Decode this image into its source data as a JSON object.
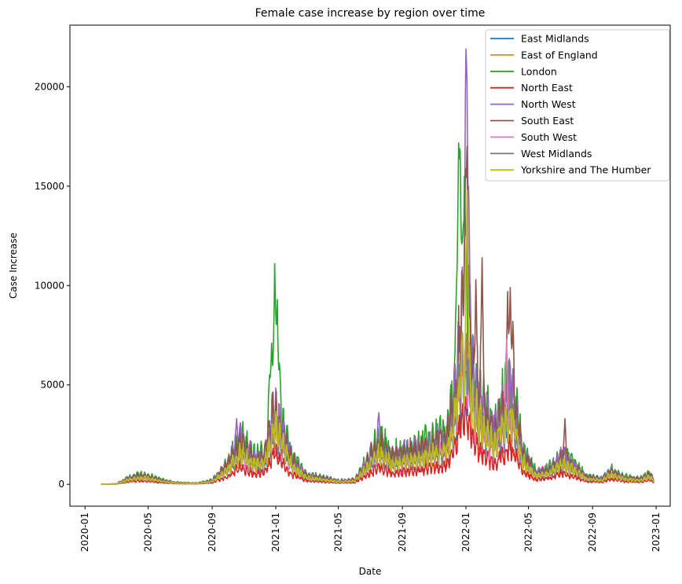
{
  "chart_data": {
    "type": "line",
    "title": "Female case increase by region over time",
    "xlabel": "Date",
    "ylabel": "Case Increase",
    "xlim": [
      "2019-12-03",
      "2023-01-28"
    ],
    "ylim": [
      -1100,
      23100
    ],
    "x_ticks": [
      {
        "date": "2020-01-01",
        "label": "2020-01"
      },
      {
        "date": "2020-05-01",
        "label": "2020-05"
      },
      {
        "date": "2020-09-01",
        "label": "2020-09"
      },
      {
        "date": "2021-01-01",
        "label": "2021-01"
      },
      {
        "date": "2021-05-01",
        "label": "2021-05"
      },
      {
        "date": "2021-09-01",
        "label": "2021-09"
      },
      {
        "date": "2022-01-01",
        "label": "2022-01"
      },
      {
        "date": "2022-05-01",
        "label": "2022-05"
      },
      {
        "date": "2022-09-01",
        "label": "2022-09"
      },
      {
        "date": "2023-01-01",
        "label": "2023-01"
      }
    ],
    "y_ticks": [
      {
        "value": 0,
        "label": "0"
      },
      {
        "value": 5000,
        "label": "5000"
      },
      {
        "value": 10000,
        "label": "10000"
      },
      {
        "value": 15000,
        "label": "15000"
      },
      {
        "value": 20000,
        "label": "20000"
      }
    ],
    "grid": false,
    "legend_position": "top-right",
    "series": [
      {
        "name": "East Midlands",
        "color": "#1f77b4",
        "scale": 0.55,
        "seed": 11
      },
      {
        "name": "East of England",
        "color": "#ff7f0e",
        "scale": 0.6,
        "seed": 23
      },
      {
        "name": "London",
        "color": "#2ca02c",
        "scale": 1.0,
        "seed": 37,
        "overrides": [
          [
            "2020-12-20",
            5500
          ],
          [
            "2020-12-24",
            7100
          ],
          [
            "2020-12-30",
            11100
          ],
          [
            "2021-01-04",
            9300
          ],
          [
            "2021-01-08",
            6100
          ],
          [
            "2021-12-14",
            10200
          ],
          [
            "2021-12-18",
            16800
          ],
          [
            "2021-12-21",
            18300
          ],
          [
            "2021-12-24",
            12100
          ],
          [
            "2021-12-29",
            15500
          ]
        ]
      },
      {
        "name": "North East",
        "color": "#d62728",
        "scale": 0.35,
        "seed": 41
      },
      {
        "name": "North West",
        "color": "#9467bd",
        "scale": 0.9,
        "seed": 53,
        "overrides": [
          [
            "2020-10-18",
            3300
          ],
          [
            "2020-10-25",
            3100
          ],
          [
            "2021-07-18",
            3600
          ],
          [
            "2021-12-27",
            10500
          ],
          [
            "2022-01-01",
            21800
          ],
          [
            "2022-01-03",
            22000
          ],
          [
            "2022-01-06",
            15000
          ]
        ]
      },
      {
        "name": "South East",
        "color": "#8c564b",
        "scale": 0.85,
        "seed": 67,
        "overrides": [
          [
            "2021-12-31",
            15500
          ],
          [
            "2022-01-03",
            17000
          ],
          [
            "2022-01-20",
            10300
          ],
          [
            "2022-02-01",
            11400
          ],
          [
            "2022-03-22",
            9700
          ],
          [
            "2022-03-27",
            9900
          ],
          [
            "2022-04-01",
            8200
          ],
          [
            "2022-07-10",
            3300
          ]
        ]
      },
      {
        "name": "South West",
        "color": "#e377c2",
        "scale": 0.6,
        "seed": 71,
        "overrides": [
          [
            "2022-03-20",
            7300
          ]
        ]
      },
      {
        "name": "West Midlands",
        "color": "#7f7f7f",
        "scale": 0.65,
        "seed": 83
      },
      {
        "name": "Yorkshire and The Humber",
        "color": "#bcbd22",
        "scale": 0.65,
        "seed": 97,
        "overrides": [
          [
            "2022-01-03",
            14800
          ]
        ]
      }
    ],
    "envelope": [
      [
        "2020-02-01",
        0
      ],
      [
        "2020-03-01",
        30
      ],
      [
        "2020-03-20",
        320
      ],
      [
        "2020-04-05",
        480
      ],
      [
        "2020-04-25",
        520
      ],
      [
        "2020-05-20",
        300
      ],
      [
        "2020-06-20",
        110
      ],
      [
        "2020-08-01",
        70
      ],
      [
        "2020-09-01",
        220
      ],
      [
        "2020-10-01",
        1200
      ],
      [
        "2020-10-25",
        2600
      ],
      [
        "2020-11-20",
        1600
      ],
      [
        "2020-12-10",
        1700
      ],
      [
        "2020-12-30",
        4800
      ],
      [
        "2021-01-10",
        3600
      ],
      [
        "2021-02-01",
        1500
      ],
      [
        "2021-03-01",
        550
      ],
      [
        "2021-04-01",
        380
      ],
      [
        "2021-05-01",
        210
      ],
      [
        "2021-06-01",
        260
      ],
      [
        "2021-06-20",
        1100
      ],
      [
        "2021-07-18",
        2600
      ],
      [
        "2021-08-10",
        1700
      ],
      [
        "2021-09-01",
        1850
      ],
      [
        "2021-10-01",
        2100
      ],
      [
        "2021-11-01",
        2500
      ],
      [
        "2021-11-25",
        2900
      ],
      [
        "2021-12-10",
        5200
      ],
      [
        "2021-12-22",
        9500
      ],
      [
        "2022-01-04",
        10500
      ],
      [
        "2022-01-15",
        6200
      ],
      [
        "2022-02-05",
        4300
      ],
      [
        "2022-02-25",
        3200
      ],
      [
        "2022-03-15",
        4900
      ],
      [
        "2022-03-30",
        5600
      ],
      [
        "2022-04-20",
        1900
      ],
      [
        "2022-05-15",
        700
      ],
      [
        "2022-06-10",
        900
      ],
      [
        "2022-07-05",
        1700
      ],
      [
        "2022-07-25",
        1200
      ],
      [
        "2022-08-20",
        450
      ],
      [
        "2022-09-20",
        330
      ],
      [
        "2022-10-05",
        820
      ],
      [
        "2022-11-01",
        420
      ],
      [
        "2022-12-01",
        330
      ],
      [
        "2022-12-20",
        620
      ],
      [
        "2022-12-28",
        260
      ]
    ]
  }
}
